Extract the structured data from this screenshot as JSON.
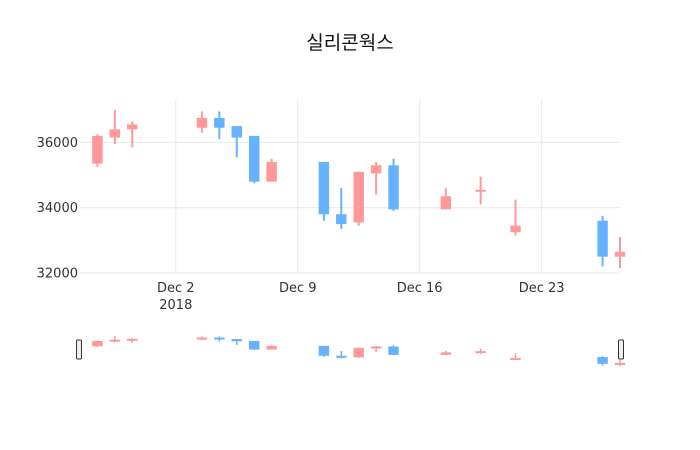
{
  "chart_data": {
    "type": "candlestick",
    "title": "실리콘웍스",
    "x_ticks": [
      {
        "date": "2018-12-02",
        "label": "Dec 2",
        "sublabel": "2018"
      },
      {
        "date": "2018-12-09",
        "label": "Dec 9",
        "sublabel": ""
      },
      {
        "date": "2018-12-16",
        "label": "Dec 16",
        "sublabel": ""
      },
      {
        "date": "2018-12-23",
        "label": "Dec 23",
        "sublabel": ""
      }
    ],
    "x_range": [
      "2018-11-26T12:00",
      "2018-12-27T12:00"
    ],
    "y_ticks": [
      {
        "value": 32000,
        "label": "32000"
      },
      {
        "value": 34000,
        "label": "34000"
      },
      {
        "value": 36000,
        "label": "36000"
      }
    ],
    "y_range": [
      32000,
      37300
    ],
    "grid": true,
    "colors": {
      "increasing": "#ff9999",
      "decreasing": "#66b2ff"
    },
    "rangeslider": true,
    "candles": [
      {
        "date": "2018-11-27",
        "open": 35350,
        "high": 36250,
        "low": 35250,
        "close": 36200
      },
      {
        "date": "2018-11-28",
        "open": 36150,
        "high": 37000,
        "low": 35950,
        "close": 36400
      },
      {
        "date": "2018-11-29",
        "open": 36400,
        "high": 36650,
        "low": 35850,
        "close": 36550
      },
      {
        "date": "2018-12-03",
        "open": 36450,
        "high": 36950,
        "low": 36300,
        "close": 36750
      },
      {
        "date": "2018-12-04",
        "open": 36750,
        "high": 36950,
        "low": 36100,
        "close": 36450
      },
      {
        "date": "2018-12-05",
        "open": 36500,
        "high": 36500,
        "low": 35550,
        "close": 36150
      },
      {
        "date": "2018-12-06",
        "open": 36200,
        "high": 36200,
        "low": 34750,
        "close": 34800
      },
      {
        "date": "2018-12-07",
        "open": 34800,
        "high": 35500,
        "low": 34800,
        "close": 35400
      },
      {
        "date": "2018-12-10",
        "open": 35400,
        "high": 35400,
        "low": 33600,
        "close": 33800
      },
      {
        "date": "2018-12-11",
        "open": 33800,
        "high": 34600,
        "low": 33350,
        "close": 33500
      },
      {
        "date": "2018-12-12",
        "open": 33550,
        "high": 35100,
        "low": 33450,
        "close": 35100
      },
      {
        "date": "2018-12-13",
        "open": 35050,
        "high": 35400,
        "low": 34400,
        "close": 35300
      },
      {
        "date": "2018-12-14",
        "open": 35300,
        "high": 35500,
        "low": 33900,
        "close": 33950
      },
      {
        "date": "2018-12-17",
        "open": 33950,
        "high": 34600,
        "low": 33950,
        "close": 34350
      },
      {
        "date": "2018-12-19",
        "open": 34500,
        "high": 34950,
        "low": 34100,
        "close": 34550
      },
      {
        "date": "2018-12-21",
        "open": 33250,
        "high": 34250,
        "low": 33150,
        "close": 33450
      },
      {
        "date": "2018-12-26",
        "open": 33600,
        "high": 33750,
        "low": 32200,
        "close": 32500
      },
      {
        "date": "2018-12-27",
        "open": 32500,
        "high": 33100,
        "low": 32150,
        "close": 32650
      }
    ]
  }
}
